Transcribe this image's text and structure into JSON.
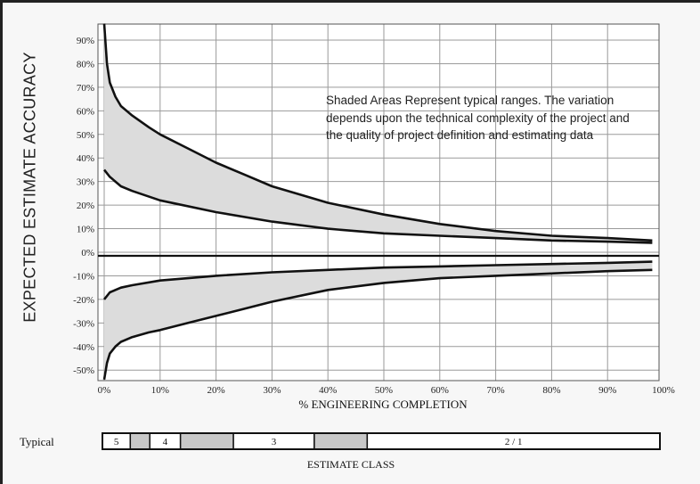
{
  "chart_data": {
    "type": "area",
    "title": "",
    "xlabel": "% ENGINEERING COMPLETION",
    "ylabel": "EXPECTED ESTIMATE ACCURACY",
    "xlim": [
      0,
      100
    ],
    "ylim": [
      -55,
      95
    ],
    "x_ticks": [
      "0%",
      "10%",
      "20%",
      "30%",
      "40%",
      "50%",
      "60%",
      "70%",
      "80%",
      "90%",
      "100%"
    ],
    "y_ticks": [
      "90%",
      "80%",
      "70%",
      "60%",
      "50%",
      "40%",
      "30%",
      "20%",
      "10%",
      "0%",
      "-10%",
      "-20%",
      "-30%",
      "-40%",
      "-50%"
    ],
    "grid": true,
    "annotation": "Shaded Areas Represent typical ranges. The variation depends upon the technical complexity of the project and the quality of project definition and estimating data",
    "series": [
      {
        "band": "upper-high",
        "x": [
          0,
          0.5,
          1,
          2,
          3,
          5,
          8,
          10,
          15,
          20,
          25,
          30,
          40,
          50,
          60,
          70,
          80,
          90,
          98
        ],
        "values": [
          97,
          80,
          72,
          66,
          62,
          58,
          53,
          50,
          44,
          38,
          33,
          28,
          21,
          16,
          12,
          9,
          7,
          6,
          5
        ]
      },
      {
        "band": "upper-low",
        "x": [
          0,
          1,
          2,
          3,
          5,
          10,
          20,
          30,
          40,
          50,
          60,
          70,
          80,
          90,
          98
        ],
        "values": [
          35,
          32,
          30,
          28,
          26,
          22,
          17,
          13,
          10,
          8,
          7,
          6,
          5,
          4.5,
          4
        ]
      },
      {
        "band": "lower-high",
        "x": [
          0,
          1,
          2,
          3,
          5,
          10,
          20,
          30,
          40,
          50,
          60,
          70,
          80,
          90,
          98
        ],
        "values": [
          -20,
          -17,
          -16,
          -15,
          -14,
          -12,
          -10,
          -8.5,
          -7.5,
          -6.5,
          -6,
          -5.5,
          -5,
          -4.5,
          -4
        ]
      },
      {
        "band": "lower-low",
        "x": [
          0,
          0.5,
          1,
          2,
          3,
          5,
          8,
          10,
          15,
          20,
          25,
          30,
          40,
          50,
          60,
          70,
          80,
          90,
          98
        ],
        "values": [
          -54,
          -47,
          -43,
          -40,
          -38,
          -36,
          -34,
          -33,
          -30,
          -27,
          -24,
          -21,
          -16,
          -13,
          -11,
          -10,
          -9,
          -8,
          -7.5
        ]
      }
    ],
    "fill_color": "#dcdcdc",
    "line_color": "#111111"
  },
  "estimate_class": {
    "row_label": "Typical",
    "title": "ESTIMATE CLASS",
    "segments": [
      {
        "label": "5",
        "from": 0,
        "to": 5,
        "shaded": false
      },
      {
        "label": "",
        "from": 5,
        "to": 8.5,
        "shaded": true
      },
      {
        "label": "4",
        "from": 8.5,
        "to": 14,
        "shaded": false
      },
      {
        "label": "",
        "from": 14,
        "to": 23.5,
        "shaded": true
      },
      {
        "label": "3",
        "from": 23.5,
        "to": 38,
        "shaded": false
      },
      {
        "label": "",
        "from": 38,
        "to": 47.5,
        "shaded": true
      },
      {
        "label": "2 / 1",
        "from": 47.5,
        "to": 100,
        "shaded": false
      }
    ]
  }
}
